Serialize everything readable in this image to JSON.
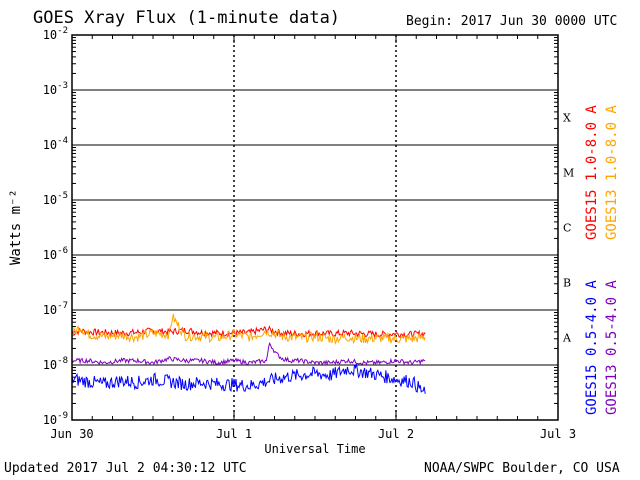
{
  "header": {
    "title": "GOES Xray Flux (1-minute data)",
    "begin": "Begin:  2017 Jun 30 0000 UTC"
  },
  "footer": {
    "updated": "Updated 2017 Jul  2 04:30:12 UTC",
    "credit": "NOAA/SWPC Boulder, CO USA"
  },
  "colors": {
    "goes15_long": "#ff0000",
    "goes13_long": "#ffa500",
    "goes15_short": "#0000ff",
    "goes13_short": "#7f00bf"
  },
  "chart_data": {
    "type": "line",
    "title": "GOES Xray Flux (1-minute data)",
    "xlabel": "Universal Time",
    "ylabel": "Watts m⁻²",
    "y_scale": "log",
    "ylim": [
      1e-09,
      0.01
    ],
    "x_unit": "days from 2017 Jun 30 00:00 UTC",
    "xlim": [
      0,
      3
    ],
    "x_ticks": [
      {
        "value": 0,
        "label": "Jun 30"
      },
      {
        "value": 1,
        "label": "Jul 1"
      },
      {
        "value": 2,
        "label": "Jul 2"
      },
      {
        "value": 3,
        "label": "Jul 3"
      }
    ],
    "y_ticks": [
      {
        "value": 1e-09,
        "mantissa": "10",
        "exponent": "-9"
      },
      {
        "value": 1e-08,
        "mantissa": "10",
        "exponent": "-8"
      },
      {
        "value": 1e-07,
        "mantissa": "10",
        "exponent": "-7"
      },
      {
        "value": 1e-06,
        "mantissa": "10",
        "exponent": "-6"
      },
      {
        "value": 1e-05,
        "mantissa": "10",
        "exponent": "-5"
      },
      {
        "value": 0.0001,
        "mantissa": "10",
        "exponent": "-4"
      },
      {
        "value": 0.001,
        "mantissa": "10",
        "exponent": "-3"
      },
      {
        "value": 0.01,
        "mantissa": "10",
        "exponent": "-2"
      }
    ],
    "flare_classes": [
      {
        "label": "A",
        "value": 3.16e-08
      },
      {
        "label": "B",
        "value": 3.16e-07
      },
      {
        "label": "C",
        "value": 3.16e-06
      },
      {
        "label": "M",
        "value": 3.16e-05
      },
      {
        "label": "X",
        "value": 0.000316
      }
    ],
    "grid": true,
    "legend_placement": "right, rotated",
    "series": [
      {
        "name": "GOES15 1.0-8.0 A",
        "color": "#ff0000",
        "x": [
          0.0,
          0.05,
          0.1,
          0.2,
          0.3,
          0.4,
          0.5,
          0.6,
          0.7,
          0.8,
          0.9,
          1.0,
          1.1,
          1.2,
          1.3,
          1.4,
          1.5,
          1.6,
          1.7,
          1.8,
          1.9,
          2.0,
          2.1,
          2.18
        ],
        "y": [
          3.8e-08,
          4.2e-08,
          4e-08,
          3.9e-08,
          3.8e-08,
          3.9e-08,
          4.2e-08,
          4e-08,
          4.3e-08,
          3.9e-08,
          3.8e-08,
          3.8e-08,
          3.9e-08,
          4.5e-08,
          3.8e-08,
          3.7e-08,
          3.8e-08,
          3.7e-08,
          3.8e-08,
          3.7e-08,
          3.6e-08,
          3.7e-08,
          3.6e-08,
          3.7e-08
        ]
      },
      {
        "name": "GOES13 1.0-8.0 A",
        "color": "#ffa500",
        "x": [
          0.0,
          0.05,
          0.1,
          0.2,
          0.3,
          0.4,
          0.5,
          0.6,
          0.62,
          0.7,
          0.8,
          0.9,
          1.0,
          1.1,
          1.2,
          1.3,
          1.4,
          1.5,
          1.6,
          1.7,
          1.8,
          1.9,
          2.0,
          2.1,
          2.18
        ],
        "y": [
          3.5e-08,
          5e-08,
          3.6e-08,
          3.3e-08,
          3.5e-08,
          3.2e-08,
          3.8e-08,
          3.6e-08,
          7.5e-08,
          3.4e-08,
          3.3e-08,
          3.1e-08,
          3.6e-08,
          3.2e-08,
          4.2e-08,
          3.3e-08,
          3.1e-08,
          3.3e-08,
          3e-08,
          3.2e-08,
          3e-08,
          3.1e-08,
          3e-08,
          3e-08,
          3.2e-08
        ]
      },
      {
        "name": "GOES13 0.5-4.0 A",
        "color": "#7f00bf",
        "x": [
          0.0,
          0.1,
          0.2,
          0.3,
          0.4,
          0.5,
          0.6,
          0.7,
          0.8,
          0.9,
          1.0,
          1.1,
          1.2,
          1.22,
          1.26,
          1.3,
          1.35,
          1.4,
          1.5,
          1.6,
          1.7,
          1.8,
          1.9,
          2.0,
          2.1,
          2.18
        ],
        "y": [
          1.2e-08,
          1.2e-08,
          1.1e-08,
          1.2e-08,
          1.2e-08,
          1.1e-08,
          1.3e-08,
          1.2e-08,
          1.2e-08,
          1.1e-08,
          1.2e-08,
          1.1e-08,
          1.2e-08,
          2.5e-08,
          1.6e-08,
          1.3e-08,
          1.2e-08,
          1.2e-08,
          1.1e-08,
          1.1e-08,
          1.2e-08,
          1.1e-08,
          1.1e-08,
          1.2e-08,
          1.1e-08,
          1.2e-08
        ]
      },
      {
        "name": "GOES15 0.5-4.0 A",
        "color": "#0000ff",
        "x": [
          0.0,
          0.1,
          0.2,
          0.3,
          0.4,
          0.5,
          0.6,
          0.7,
          0.8,
          0.9,
          1.0,
          1.1,
          1.2,
          1.3,
          1.4,
          1.5,
          1.6,
          1.7,
          1.8,
          1.9,
          2.0,
          2.1,
          2.18
        ],
        "y": [
          5.5e-09,
          5e-09,
          4.5e-09,
          5.2e-09,
          4.8e-09,
          5.5e-09,
          5e-09,
          4.5e-09,
          4.8e-09,
          4.5e-09,
          4.4e-09,
          4.2e-09,
          5e-09,
          6e-09,
          6.5e-09,
          7e-09,
          6.5e-09,
          8.5e-09,
          7.5e-09,
          6.5e-09,
          5.5e-09,
          5e-09,
          3e-09
        ]
      }
    ]
  }
}
